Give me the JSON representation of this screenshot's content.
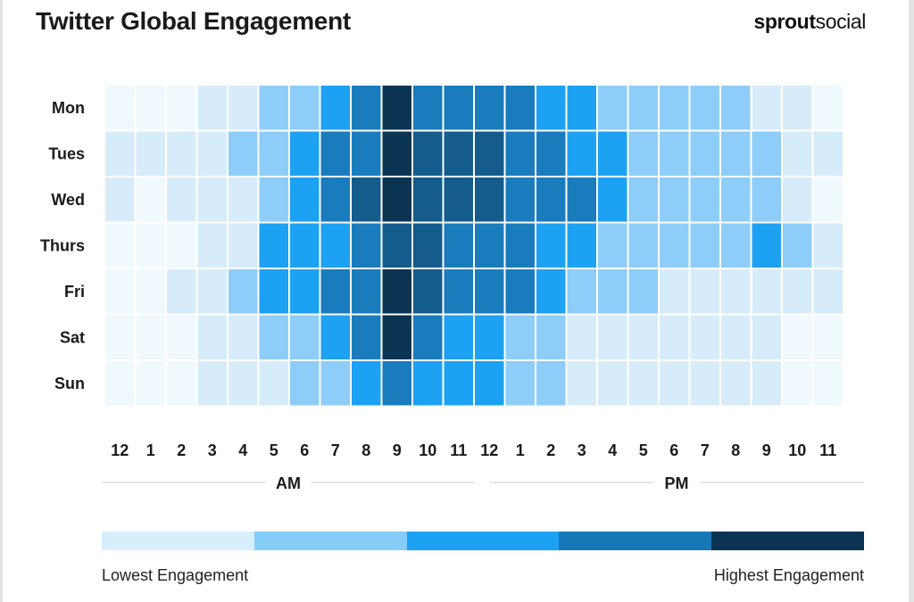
{
  "header": {
    "title": "Twitter Global Engagement",
    "logo_bold": "sprout",
    "logo_regular": "social"
  },
  "chart_data": {
    "type": "heatmap",
    "title": "Twitter Global Engagement",
    "rows": [
      "Mon",
      "Tues",
      "Wed",
      "Thurs",
      "Fri",
      "Sat",
      "Sun"
    ],
    "columns": [
      "12",
      "1",
      "2",
      "3",
      "4",
      "5",
      "6",
      "7",
      "8",
      "9",
      "10",
      "11",
      "12",
      "1",
      "2",
      "3",
      "4",
      "5",
      "6",
      "7",
      "8",
      "9",
      "10",
      "11"
    ],
    "period_labels": [
      "AM",
      "PM"
    ],
    "scale": "engagement level 0 (lowest) to 5 (highest)",
    "values": [
      [
        0,
        0,
        0,
        1,
        1,
        2,
        2,
        3,
        4,
        5,
        4,
        4,
        4,
        4,
        3,
        3,
        2,
        2,
        2,
        2,
        2,
        1,
        1,
        0
      ],
      [
        1,
        1,
        1,
        1,
        2,
        2,
        3,
        4,
        4,
        5,
        4.5,
        4.5,
        4.5,
        4,
        4,
        3,
        3,
        2,
        2,
        2,
        2,
        2,
        1,
        1
      ],
      [
        1,
        0,
        1,
        1,
        1,
        2,
        3,
        4,
        4.5,
        5,
        4.5,
        4.5,
        4.5,
        4,
        4,
        4,
        3,
        2,
        2,
        2,
        2,
        2,
        1,
        0
      ],
      [
        0,
        0,
        0,
        1,
        1,
        3,
        3,
        3,
        4,
        4.5,
        4.5,
        4,
        4,
        4,
        3,
        3,
        2,
        2,
        2,
        2,
        2,
        3,
        2,
        1
      ],
      [
        0,
        0,
        1,
        1,
        2,
        3,
        3,
        4,
        4,
        5,
        4.5,
        4,
        4,
        4,
        3,
        2,
        2,
        2,
        1,
        1,
        1,
        1,
        1,
        1
      ],
      [
        0,
        0,
        0,
        1,
        1,
        2,
        2,
        3,
        4,
        5,
        4,
        3,
        3,
        2,
        2,
        1,
        1,
        1,
        1,
        1,
        1,
        1,
        0,
        0
      ],
      [
        0,
        0,
        0,
        1,
        1,
        1,
        2,
        2,
        3,
        4,
        3,
        3,
        3,
        2,
        2,
        1,
        1,
        1,
        1,
        1,
        1,
        1,
        0,
        0
      ]
    ],
    "legend": {
      "low_label": "Lowest Engagement",
      "high_label": "Highest Engagement",
      "colors": [
        "#d7eefc",
        "#85cdf9",
        "#1da1f2",
        "#1778b7",
        "#0b3352"
      ]
    },
    "cell_colors": {
      "0": "#f0f9fe",
      "1": "#d7ecfa",
      "2": "#8ecdf7",
      "3": "#1da1f2",
      "4": "#1a7bbd",
      "4.5": "#135c8c",
      "5": "#0b3352"
    }
  }
}
